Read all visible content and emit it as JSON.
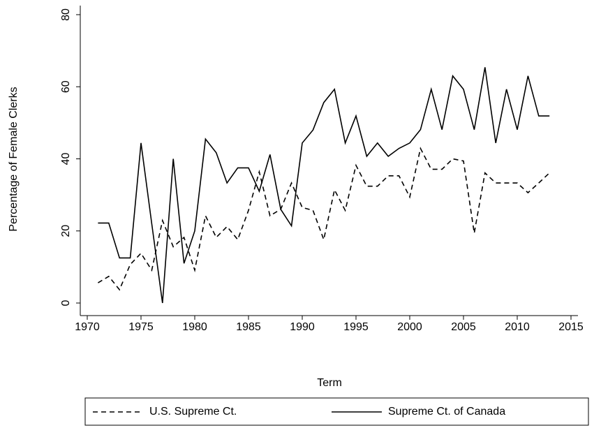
{
  "chart_data": {
    "type": "line",
    "x": [
      1971,
      1972,
      1973,
      1974,
      1975,
      1976,
      1977,
      1978,
      1979,
      1980,
      1981,
      1982,
      1983,
      1984,
      1985,
      1986,
      1987,
      1988,
      1989,
      1990,
      1991,
      1992,
      1993,
      1994,
      1995,
      1996,
      1997,
      1998,
      1999,
      2000,
      2001,
      2002,
      2003,
      2004,
      2005,
      2006,
      2007,
      2008,
      2009,
      2010,
      2011,
      2012,
      2013
    ],
    "series": [
      {
        "name": "U.S. Supreme Ct.",
        "color": "#000000",
        "dash": "dashed",
        "values": [
          5.6,
          7.4,
          3.7,
          10.7,
          13.8,
          9.1,
          22.9,
          15.6,
          18.2,
          9.1,
          24.2,
          18.2,
          21.2,
          17.6,
          25.7,
          36.4,
          24.2,
          26,
          33.3,
          26.5,
          25.7,
          17.6,
          31.4,
          25.7,
          38.2,
          32.4,
          32.4,
          35.3,
          35.3,
          29.4,
          42.9,
          37.1,
          37.1,
          40,
          39.4,
          19.4,
          36.1,
          33.3,
          33.3,
          33.3,
          30.6,
          33.3,
          36.1
        ]
      },
      {
        "name": "Supreme Ct. of Canada",
        "color": "#000000",
        "dash": "solid",
        "values": [
          22.2,
          22.2,
          12.5,
          12.5,
          44.4,
          22,
          0,
          40,
          11,
          20,
          45.5,
          41.7,
          33.3,
          37.5,
          37.5,
          31,
          41.2,
          26,
          21.4,
          44.4,
          48,
          55.6,
          59.3,
          44.4,
          51.9,
          40.7,
          44.4,
          40.7,
          42.9,
          44.4,
          48.1,
          59.3,
          48.1,
          63,
          59.3,
          48.1,
          65.4,
          44.4,
          59.3,
          48.1,
          63,
          51.9,
          51.9
        ]
      }
    ],
    "xlabel": "Term",
    "ylabel": "Percentage of Female Clerks",
    "xlim": [
      1970,
      2015
    ],
    "xticks": [
      1970,
      1975,
      1980,
      1985,
      1990,
      1995,
      2000,
      2005,
      2010,
      2015
    ],
    "ylim": [
      0,
      80
    ],
    "yticks": [
      0,
      20,
      40,
      60,
      80
    ]
  }
}
